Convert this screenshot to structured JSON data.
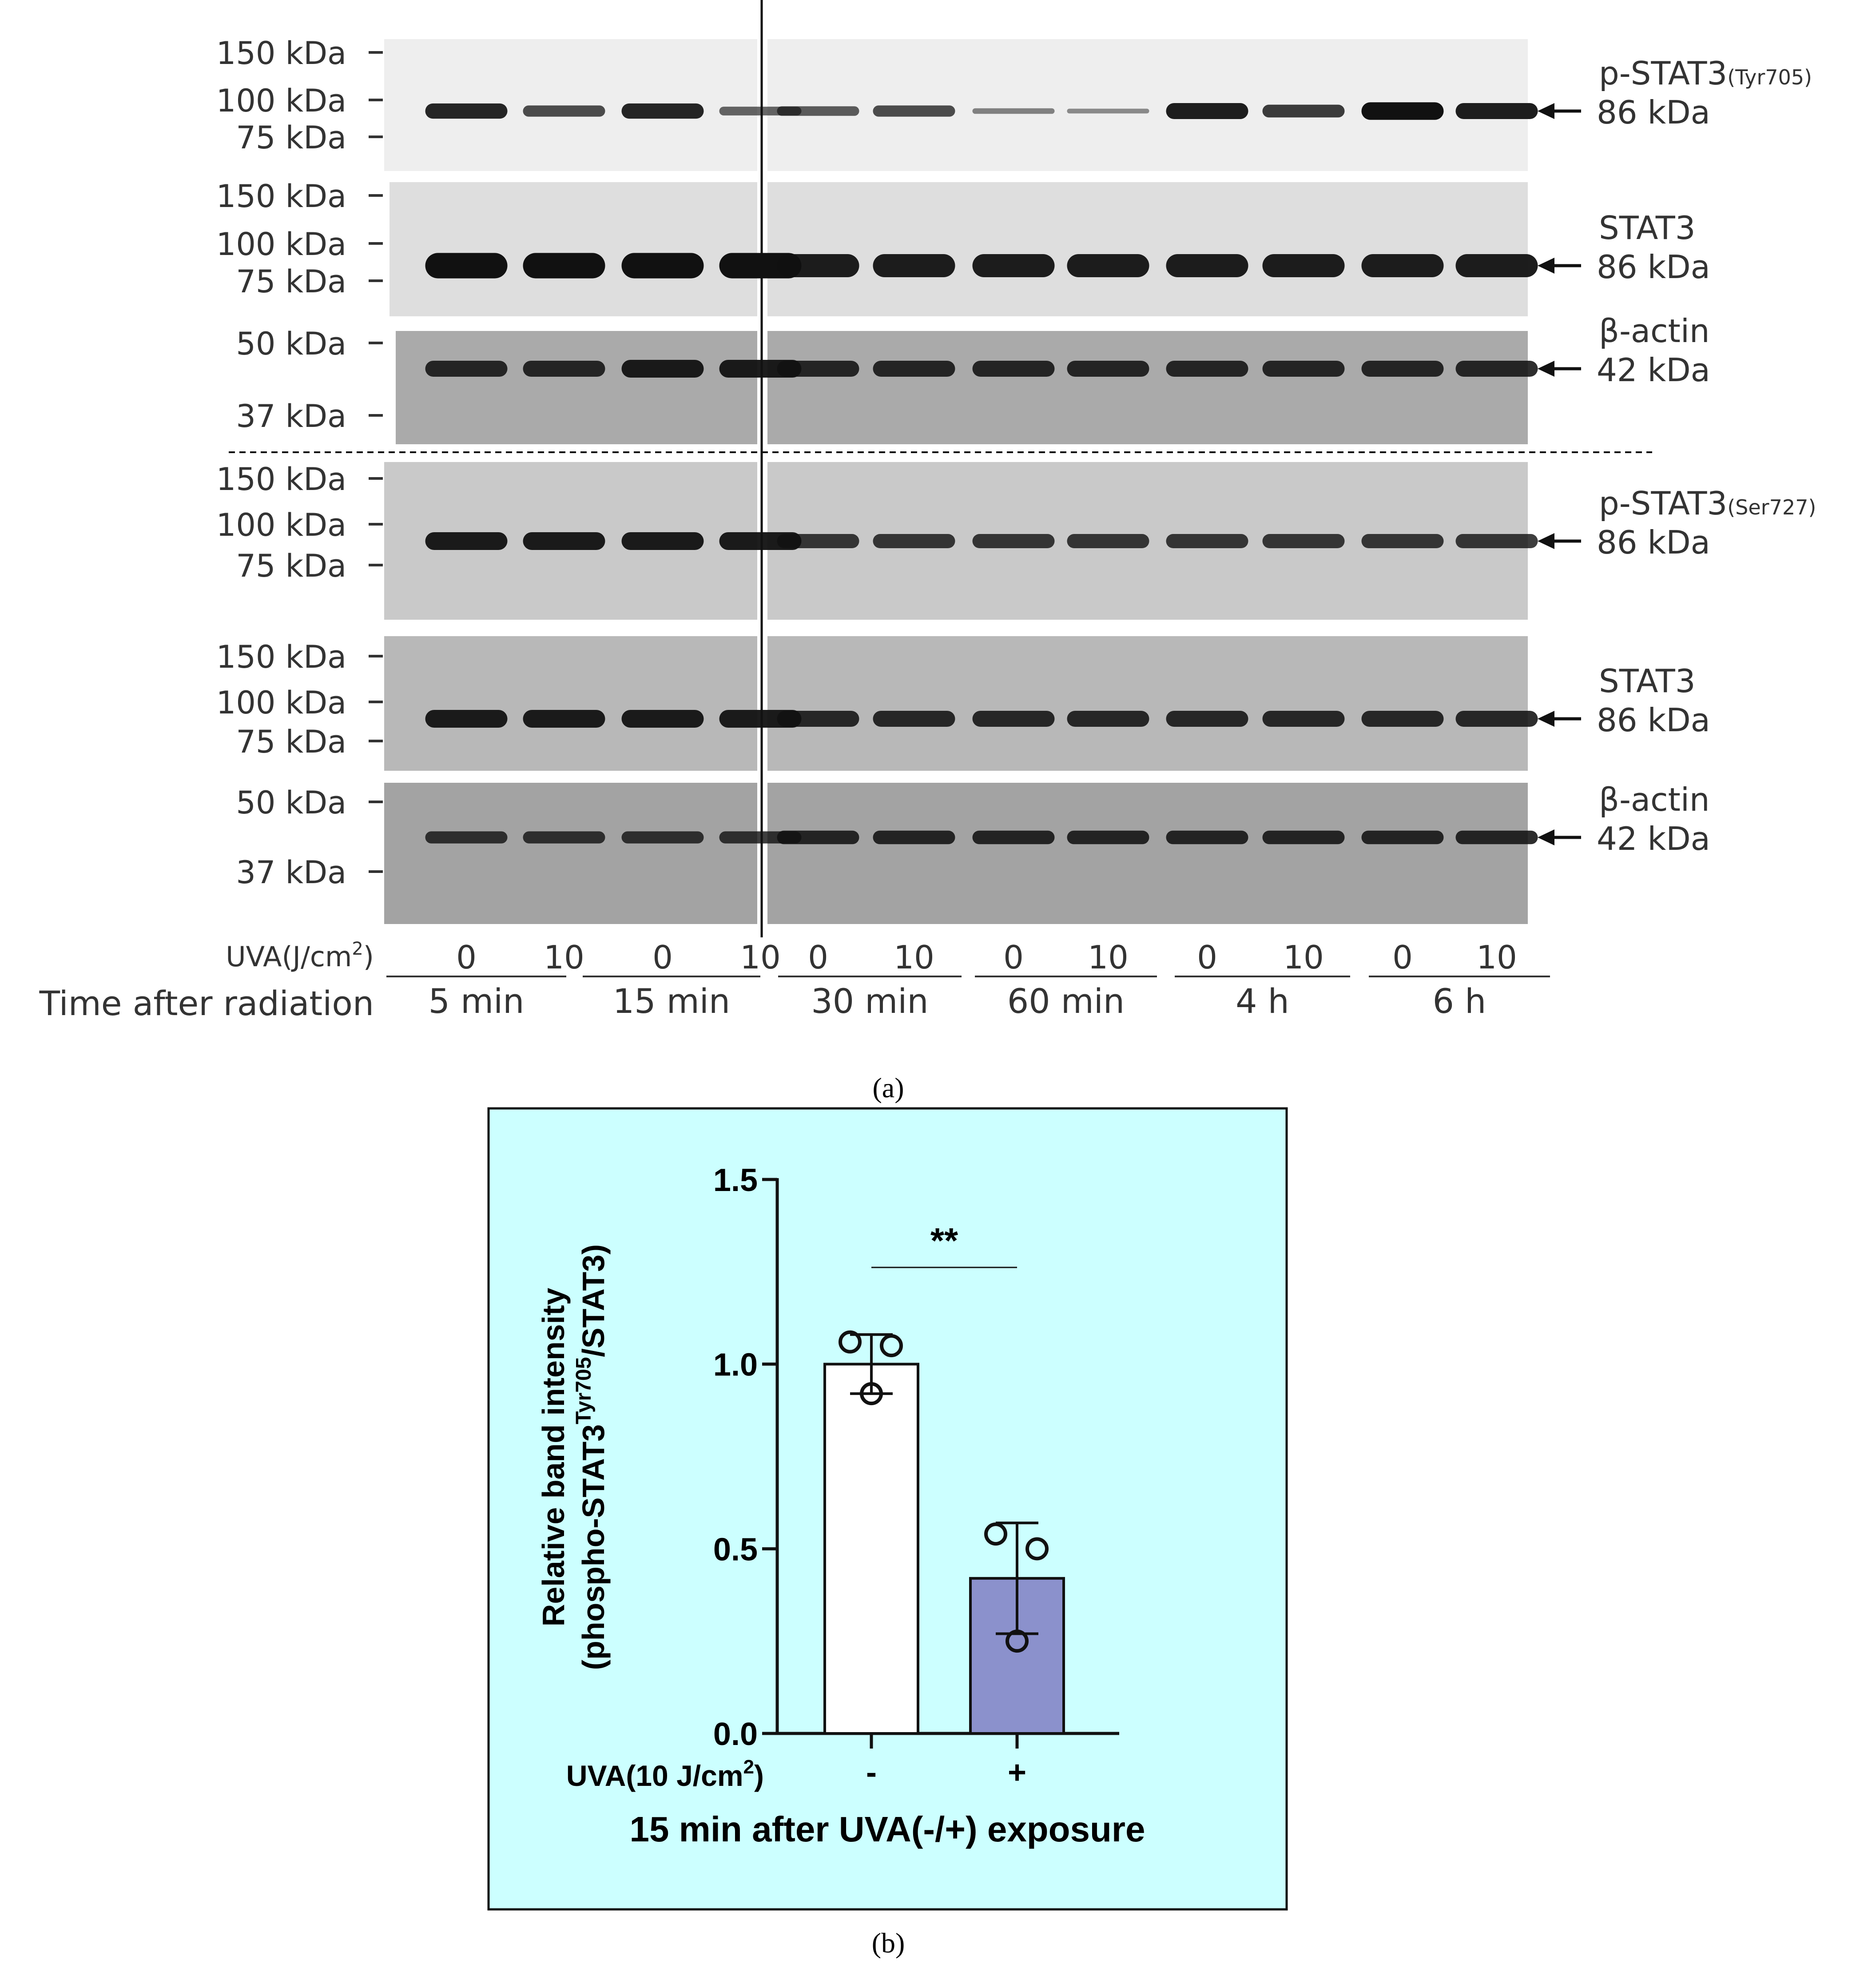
{
  "panel_a": {
    "caption": "(a)",
    "blots": [
      {
        "markers": [
          "150 kDa",
          "100 kDa",
          "75 kDa"
        ],
        "protein": "p-STAT3",
        "protein_sub": "(Tyr705)",
        "size": "86 kDa",
        "band_rel": [
          0.95,
          0.7,
          0.95,
          0.55,
          0.6,
          0.7,
          0.35,
          0.3,
          1.0,
          0.8,
          1.1,
          1.0
        ],
        "bg": "#eeeeee"
      },
      {
        "markers": [
          "150 kDa",
          "100 kDa",
          "75 kDa"
        ],
        "protein": "STAT3",
        "protein_sub": "",
        "size": "86 kDa",
        "band_rel": [
          1.1,
          1.1,
          1.1,
          1.1,
          1,
          1,
          1,
          1,
          1,
          1,
          1,
          1
        ],
        "bg": "#dedede"
      },
      {
        "markers": [
          "50 kDa",
          "37 kDa"
        ],
        "protein": "β-actin",
        "protein_sub": "",
        "size": "42 kDa",
        "band_rel": [
          0.9,
          0.9,
          1,
          1,
          0.9,
          0.9,
          0.9,
          0.9,
          0.9,
          0.9,
          0.9,
          0.9
        ],
        "bg": "#aaaaaa"
      },
      {
        "markers": [
          "150 kDa",
          "100 kDa",
          "75 kDa"
        ],
        "protein": "p-STAT3",
        "protein_sub": "(Ser727)",
        "size": "86 kDa",
        "band_rel": [
          1,
          1,
          1,
          1,
          0.8,
          0.8,
          0.8,
          0.8,
          0.8,
          0.8,
          0.8,
          0.8
        ],
        "bg": "#c9c9c9"
      },
      {
        "markers": [
          "150 kDa",
          "100 kDa",
          "75 kDa"
        ],
        "protein": "STAT3",
        "protein_sub": "",
        "size": "86 kDa",
        "band_rel": [
          1,
          1,
          1,
          1,
          0.9,
          0.9,
          0.9,
          0.9,
          0.9,
          0.9,
          0.9,
          0.9
        ],
        "bg": "#b8b8b8"
      },
      {
        "markers": [
          "50 kDa",
          "37 kDa"
        ],
        "protein": "β-actin",
        "protein_sub": "",
        "size": "42 kDa",
        "band_rel": [
          0.8,
          0.8,
          0.8,
          0.8,
          0.9,
          0.9,
          0.9,
          0.9,
          0.9,
          0.9,
          0.9,
          0.9
        ],
        "bg": "#a3a3a3"
      }
    ],
    "uva_label": "UVA(J/cm",
    "uva_label_sup": "2",
    "uva_label_end": ")",
    "time_label": "Time after radiation",
    "groups": [
      {
        "doses": [
          "0",
          "10"
        ],
        "time": "5 min"
      },
      {
        "doses": [
          "0",
          "10"
        ],
        "time": "15 min"
      },
      {
        "doses": [
          "0",
          "10"
        ],
        "time": "30 min"
      },
      {
        "doses": [
          "0",
          "10"
        ],
        "time": "60 min"
      },
      {
        "doses": [
          "0",
          "10"
        ],
        "time": "4 h"
      },
      {
        "doses": [
          "0",
          "10"
        ],
        "time": "6 h"
      }
    ]
  },
  "panel_b": {
    "caption": "(b)",
    "background": "#ccffff",
    "chart_data": {
      "type": "bar",
      "categories": [
        "-",
        "+"
      ],
      "values": [
        1.0,
        0.42
      ],
      "error_upper": [
        1.08,
        0.57
      ],
      "error_lower": [
        0.92,
        0.27
      ],
      "points": [
        [
          1.06,
          1.05,
          0.92
        ],
        [
          0.54,
          0.5,
          0.25
        ]
      ],
      "bar_colors": [
        "#ffffff",
        "#8b91cc"
      ],
      "ylabel_line1": "Relative band intensity",
      "ylabel_line2_pre": "(phospho-STAT3",
      "ylabel_line2_sup": "Tyr705",
      "ylabel_line2_post": "/STAT3)",
      "xlabel_pre": "UVA(10 J/cm",
      "xlabel_sup": "2",
      "xlabel_post": ")",
      "title": "15 min after UVA(-/+) exposure",
      "ylim": [
        0,
        1.5
      ],
      "yticks": [
        0.0,
        0.5,
        1.0,
        1.5
      ],
      "ytick_labels": [
        "0.0",
        "0.5",
        "1.0",
        "1.5"
      ],
      "significance": "**"
    }
  }
}
